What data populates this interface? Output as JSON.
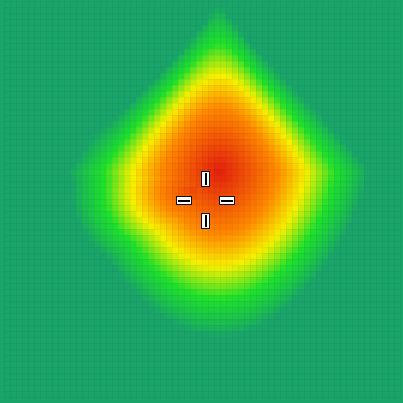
{
  "view": {
    "type": "heatmap",
    "colors": {
      "low": "#1aa46a",
      "mid_low": "#1ee02c",
      "mid": "#f7f000",
      "mid_high": "#ff8a00",
      "high": "#e41f0d"
    }
  },
  "crosshair": {
    "icon": "crosshair-icon"
  }
}
